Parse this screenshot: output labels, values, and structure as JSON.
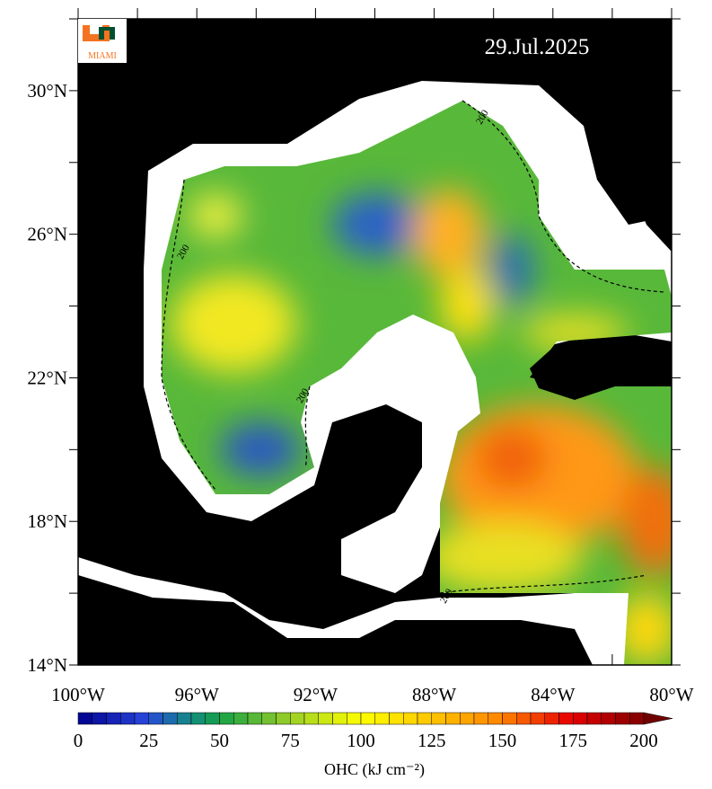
{
  "map": {
    "date": "29.Jul.2025",
    "logo_text": "MIAMI",
    "lat_ticks": [
      {
        "value": 14,
        "label": "14°N"
      },
      {
        "value": 18,
        "label": "18°N"
      },
      {
        "value": 22,
        "label": "22°N"
      },
      {
        "value": 26,
        "label": "26°N"
      },
      {
        "value": 30,
        "label": "30°N"
      }
    ],
    "lat_minor_ticks": [
      16,
      20,
      24,
      28,
      32
    ],
    "lon_ticks": [
      {
        "value": -100,
        "label": "100°W"
      },
      {
        "value": -96,
        "label": "96°W"
      },
      {
        "value": -92,
        "label": "92°W"
      },
      {
        "value": -88,
        "label": "88°W"
      },
      {
        "value": -84,
        "label": "84°W"
      },
      {
        "value": -80,
        "label": "80°W"
      }
    ],
    "lon_minor_ticks": [
      -98,
      -94,
      -90,
      -86,
      -82
    ],
    "latlim": [
      14,
      32
    ],
    "lonlim": [
      -100,
      -80
    ],
    "contour_labels": [
      "200",
      "200",
      "200",
      "200"
    ],
    "colorbar": {
      "label": "OHC (kJ cm⁻²)",
      "lim": [
        0,
        200
      ],
      "step": 5,
      "ticks": [
        0,
        25,
        50,
        75,
        100,
        125,
        150,
        175,
        200
      ]
    }
  }
}
